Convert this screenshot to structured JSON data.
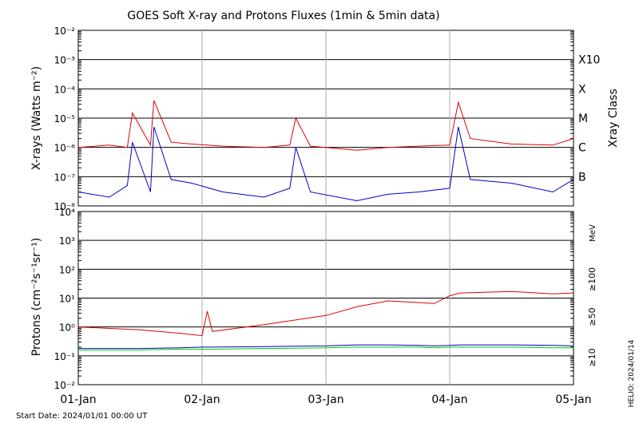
{
  "title": "GOES Soft X-ray and Protons Fluxes   (1min & 5min data)",
  "start_date": "Start Date: 2024/01/01 00:00 UT",
  "helio_stamp": "HELIO: 2024/01/14",
  "colors": {
    "xray_long": "#dd0000",
    "xray_short": "#0000cc",
    "proton_10": "#dd0000",
    "proton_50": "#0000cc",
    "proton_100": "#00cc00",
    "grid": "#000000",
    "day_grid": "#aaaaaa"
  },
  "chart_data": [
    {
      "type": "line",
      "panel": "xray",
      "ylabel": "X-rays (Watts m⁻²)",
      "yscale": "log",
      "ylim": [
        1e-08,
        0.01
      ],
      "ytick_labels": [
        "10⁻⁸",
        "10⁻⁷",
        "10⁻⁶",
        "10⁻⁵",
        "10⁻⁴",
        "10⁻³",
        "10⁻²"
      ],
      "right_axis_label": "Xray Class",
      "class_labels": [
        "B",
        "C",
        "M",
        "X",
        "X10"
      ],
      "x": [
        "2024-01-01 00:00",
        "2024-01-01 06:00",
        "2024-01-01 09:30",
        "2024-01-01 10:30",
        "2024-01-01 14:00",
        "2024-01-01 14:40",
        "2024-01-01 18:00",
        "2024-01-01 22:00",
        "2024-01-02 04:00",
        "2024-01-02 12:00",
        "2024-01-02 17:00",
        "2024-01-02 18:10",
        "2024-01-02 21:00",
        "2024-01-03 06:00",
        "2024-01-03 12:00",
        "2024-01-03 18:00",
        "2024-01-04 00:00",
        "2024-01-04 01:40",
        "2024-01-04 04:00",
        "2024-01-04 12:00",
        "2024-01-04 20:00",
        "2024-01-05 00:00"
      ],
      "series": [
        {
          "values": [
            1e-06,
            1.2e-06,
            1e-06,
            1.5e-05,
            1.2e-06,
            4e-05,
            1.5e-06,
            1.3e-06,
            1.1e-06,
            1e-06,
            1.2e-06,
            1e-05,
            1.1e-06,
            8e-07,
            1e-06,
            1.1e-06,
            1.2e-06,
            3.5e-05,
            2e-06,
            1.3e-06,
            1.2e-06,
            2e-06
          ]
        },
        {
          "values": [
            3e-08,
            2e-08,
            5e-08,
            1.5e-06,
            3e-08,
            5e-06,
            8e-08,
            6e-08,
            3e-08,
            2e-08,
            4e-08,
            1e-06,
            3e-08,
            1.5e-08,
            2.5e-08,
            3e-08,
            4e-08,
            5e-06,
            8e-08,
            6e-08,
            3e-08,
            8e-08
          ]
        }
      ]
    },
    {
      "type": "line",
      "panel": "protons",
      "ylabel": "Protons (cm⁻²s⁻¹sr⁻¹)",
      "yscale": "log",
      "ylim": [
        0.01,
        10000
      ],
      "ytick_labels": [
        "10⁻²",
        "10⁻¹",
        "10⁰",
        "10¹",
        "10²",
        "10³",
        "10⁴"
      ],
      "threshold": 10,
      "energy_unit": "MeV",
      "xtick_labels": [
        "01-Jan",
        "02-Jan",
        "03-Jan",
        "04-Jan",
        "05-Jan"
      ],
      "x": [
        "2024-01-01 00:00",
        "2024-01-01 12:00",
        "2024-01-01 20:00",
        "2024-01-02 00:00",
        "2024-01-02 01:00",
        "2024-01-02 02:00",
        "2024-01-02 12:00",
        "2024-01-03 00:00",
        "2024-01-03 06:00",
        "2024-01-03 12:00",
        "2024-01-03 18:00",
        "2024-01-03 21:00",
        "2024-01-04 00:00",
        "2024-01-04 02:00",
        "2024-01-04 12:00",
        "2024-01-04 20:00",
        "2024-01-05 00:00"
      ],
      "series": [
        {
          "name": "≥10",
          "values": [
            1.0,
            0.8,
            0.6,
            0.5,
            3.5,
            0.7,
            1.2,
            2.5,
            5.0,
            8.0,
            7.0,
            6.5,
            12,
            15,
            17,
            14,
            15
          ]
        },
        {
          "name": "≥50",
          "values": [
            0.18,
            0.18,
            0.19,
            0.2,
            0.2,
            0.2,
            0.21,
            0.22,
            0.24,
            0.24,
            0.23,
            0.22,
            0.23,
            0.24,
            0.24,
            0.23,
            0.22
          ]
        },
        {
          "name": "≥100",
          "values": [
            0.16,
            0.16,
            0.17,
            0.17,
            0.17,
            0.17,
            0.18,
            0.19,
            0.2,
            0.2,
            0.2,
            0.19,
            0.2,
            0.2,
            0.2,
            0.19,
            0.19
          ]
        }
      ]
    }
  ]
}
